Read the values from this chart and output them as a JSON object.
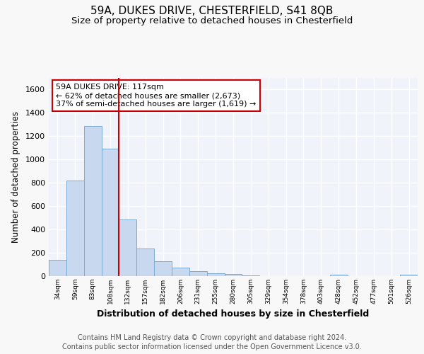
{
  "title1": "59A, DUKES DRIVE, CHESTERFIELD, S41 8QB",
  "title2": "Size of property relative to detached houses in Chesterfield",
  "xlabel": "Distribution of detached houses by size in Chesterfield",
  "ylabel": "Number of detached properties",
  "footer1": "Contains HM Land Registry data © Crown copyright and database right 2024.",
  "footer2": "Contains public sector information licensed under the Open Government Licence v3.0.",
  "categories": [
    "34sqm",
    "59sqm",
    "83sqm",
    "108sqm",
    "132sqm",
    "157sqm",
    "182sqm",
    "206sqm",
    "231sqm",
    "255sqm",
    "280sqm",
    "305sqm",
    "329sqm",
    "354sqm",
    "378sqm",
    "403sqm",
    "428sqm",
    "452sqm",
    "477sqm",
    "501sqm",
    "526sqm"
  ],
  "values": [
    140,
    820,
    1290,
    1090,
    485,
    235,
    130,
    70,
    45,
    25,
    18,
    8,
    0,
    0,
    0,
    0,
    15,
    0,
    0,
    0,
    12
  ],
  "bar_color": "#c8d8ee",
  "bar_edge_color": "#7aaad4",
  "vline_x": 3.5,
  "vline_color": "#cc0000",
  "annotation_text": "59A DUKES DRIVE: 117sqm\n← 62% of detached houses are smaller (2,673)\n37% of semi-detached houses are larger (1,619) →",
  "annotation_box_facecolor": "#ffffff",
  "annotation_box_edgecolor": "#cc0000",
  "ylim": [
    0,
    1700
  ],
  "yticks": [
    0,
    200,
    400,
    600,
    800,
    1000,
    1200,
    1400,
    1600
  ],
  "bg_color": "#f8f8f8",
  "plot_bg_color": "#f0f4fa",
  "grid_color": "#ffffff",
  "title1_fontsize": 11,
  "title2_fontsize": 9.5,
  "xlabel_fontsize": 9,
  "ylabel_fontsize": 8.5,
  "footer_fontsize": 7,
  "annot_fontsize": 8
}
